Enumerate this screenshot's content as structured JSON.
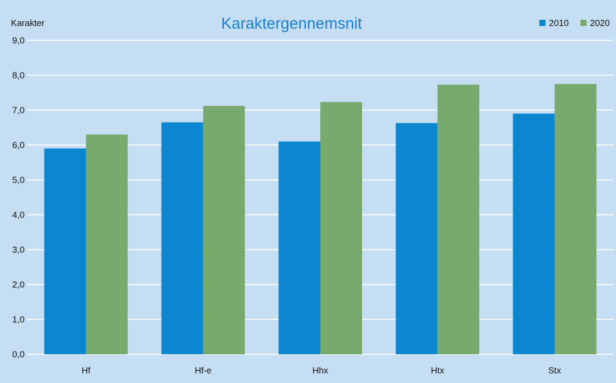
{
  "chart_data": {
    "type": "bar",
    "title": "Karaktergennemsnit",
    "ylabel": "Karakter",
    "xlabel": "",
    "categories": [
      "Hf",
      "Hf-e",
      "Hhx",
      "Htx",
      "Stx"
    ],
    "series": [
      {
        "name": "2010",
        "color": "#0b87d0",
        "values": [
          5.9,
          6.65,
          6.1,
          6.63,
          6.9
        ]
      },
      {
        "name": "2020",
        "color": "#78a96d",
        "values": [
          6.3,
          7.12,
          7.23,
          7.73,
          7.75
        ]
      }
    ],
    "ylim": [
      0,
      9
    ],
    "yticks": [
      "0,0",
      "1,0",
      "2,0",
      "3,0",
      "4,0",
      "5,0",
      "6,0",
      "7,0",
      "8,0",
      "9,0"
    ],
    "grid": true,
    "legend_position": "top-right",
    "colors": {
      "background": "#c5def3",
      "gridline": "#ffffff",
      "title": "#1a7fc8"
    }
  }
}
